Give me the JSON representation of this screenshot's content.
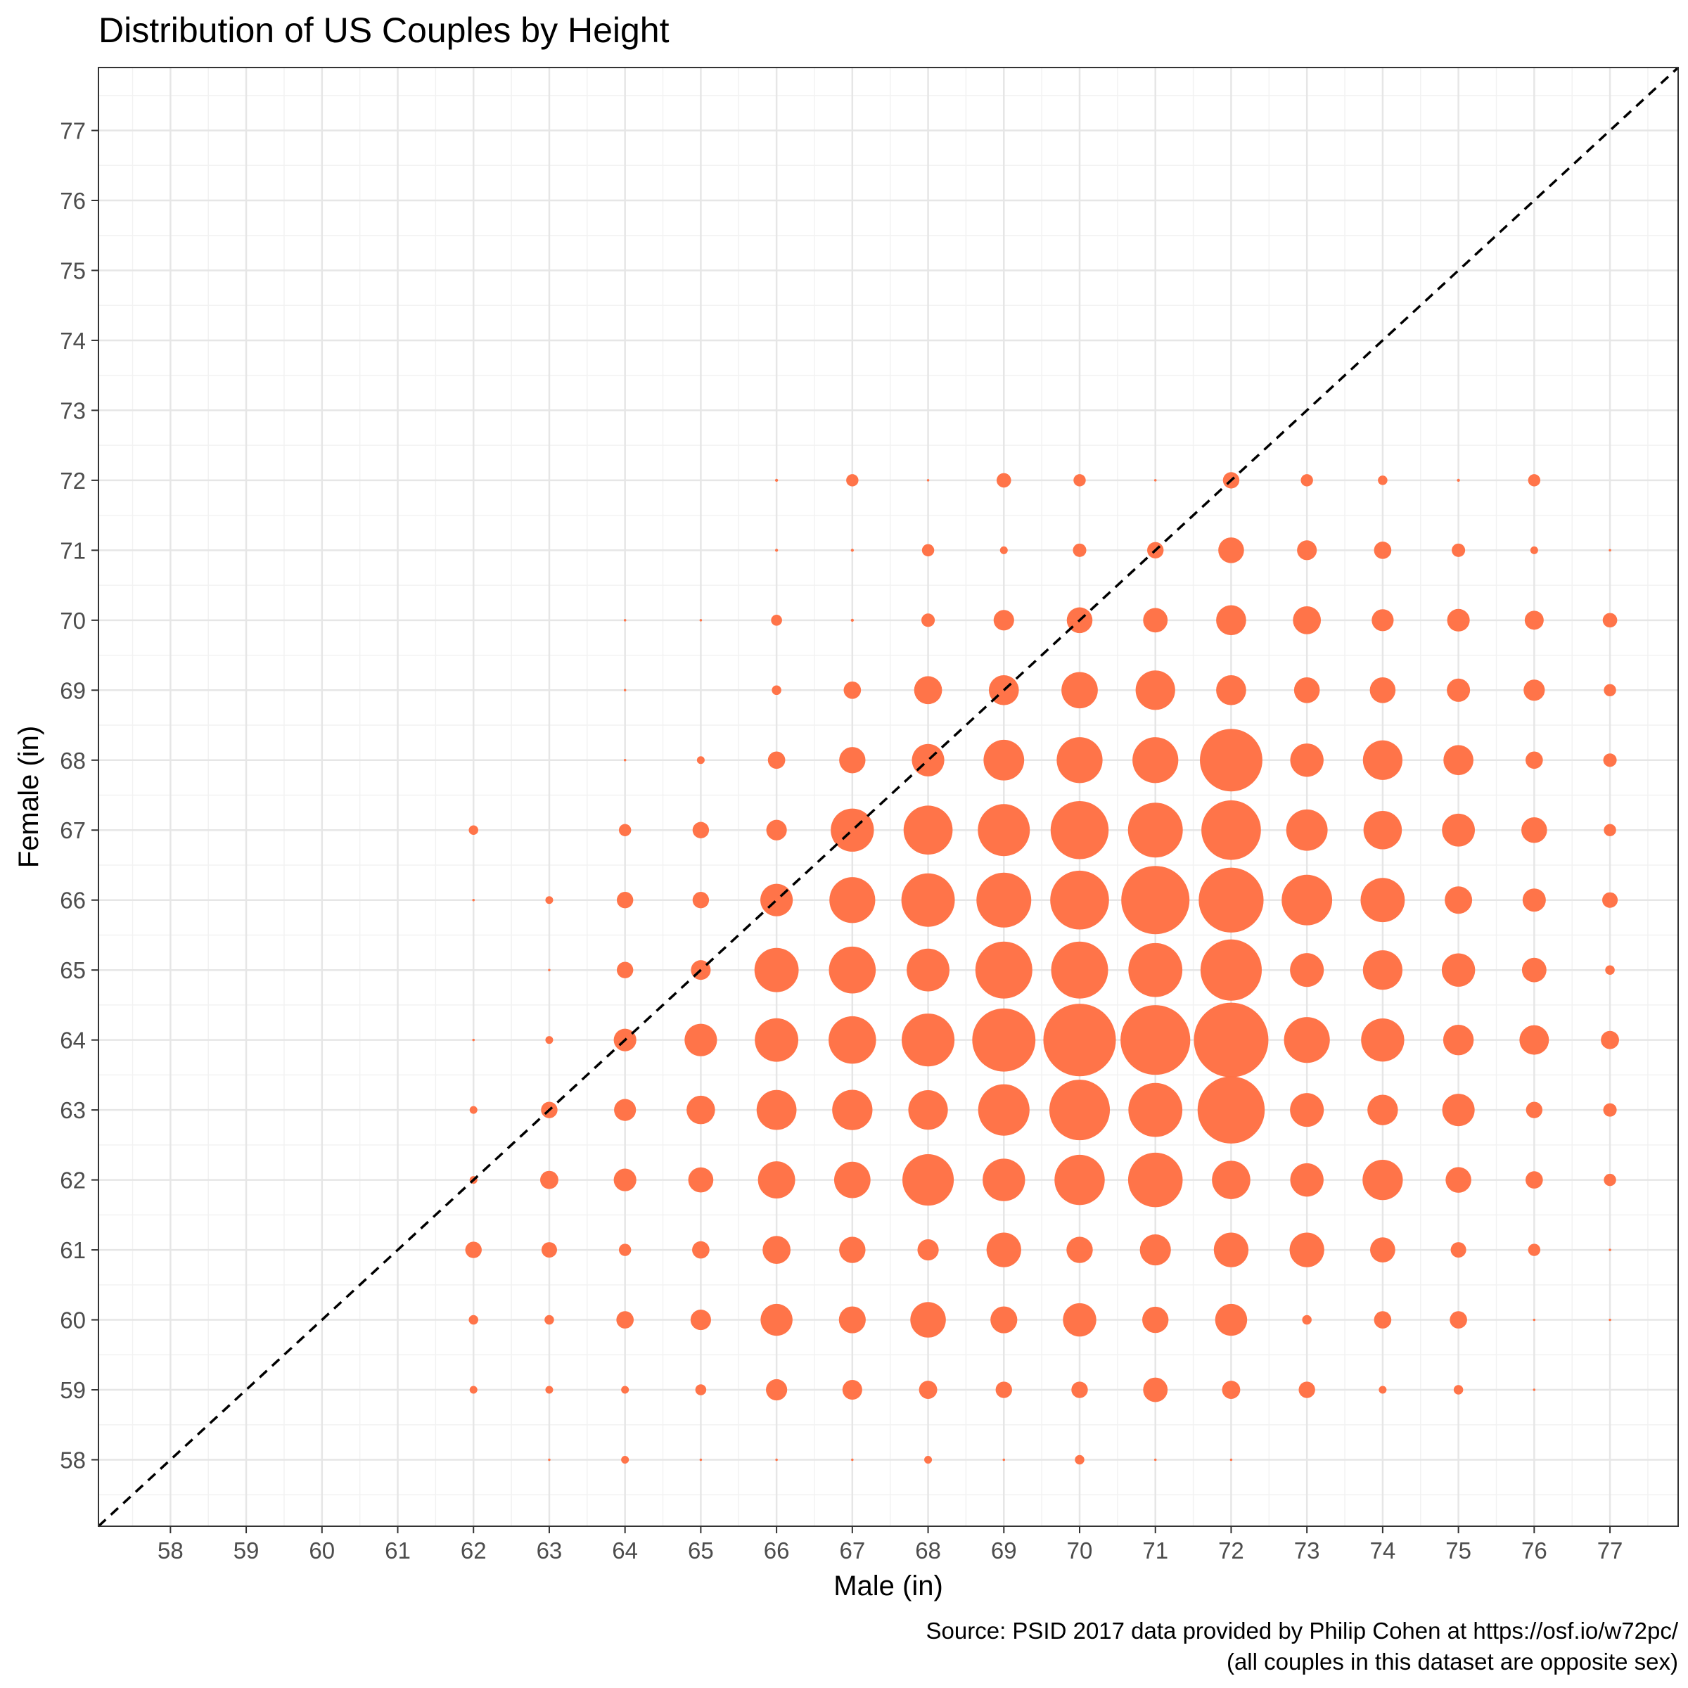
{
  "chart_data": {
    "type": "scatter",
    "title": "Distribution of US Couples by Height",
    "xlabel": "Male (in)",
    "ylabel": "Female (in)",
    "xlim": [
      57.05,
      77.9
    ],
    "ylim": [
      57.05,
      77.9
    ],
    "x_ticks": [
      58,
      59,
      60,
      61,
      62,
      63,
      64,
      65,
      66,
      67,
      68,
      69,
      70,
      71,
      72,
      73,
      74,
      75,
      76,
      77
    ],
    "y_ticks": [
      58,
      59,
      60,
      61,
      62,
      63,
      64,
      65,
      66,
      67,
      68,
      69,
      70,
      71,
      72,
      73,
      74,
      75,
      76,
      77
    ],
    "caption": [
      "Source: PSID 2017 data provided by Philip Cohen at https://osf.io/w72pc/",
      "(all couples in this dataset are opposite sex)"
    ],
    "point_color": "#ff7043",
    "reference_line": "y = x (dashed)",
    "grid": true,
    "legend": "none",
    "size_encoding": "point area proportional to count (relative size)",
    "points": [
      {
        "x": 66,
        "y": 72,
        "size": 0.3
      },
      {
        "x": 67,
        "y": 72,
        "size": 5
      },
      {
        "x": 68,
        "y": 72,
        "size": 0.2
      },
      {
        "x": 69,
        "y": 72,
        "size": 7
      },
      {
        "x": 70,
        "y": 72,
        "size": 5
      },
      {
        "x": 71,
        "y": 72,
        "size": 0.2
      },
      {
        "x": 72,
        "y": 72,
        "size": 9
      },
      {
        "x": 73,
        "y": 72,
        "size": 5
      },
      {
        "x": 74,
        "y": 72,
        "size": 3
      },
      {
        "x": 75,
        "y": 72,
        "size": 0.3
      },
      {
        "x": 76,
        "y": 72,
        "size": 5
      },
      {
        "x": 66,
        "y": 71,
        "size": 0.3
      },
      {
        "x": 67,
        "y": 71,
        "size": 0.3
      },
      {
        "x": 68,
        "y": 71,
        "size": 5
      },
      {
        "x": 69,
        "y": 71,
        "size": 2
      },
      {
        "x": 70,
        "y": 71,
        "size": 6
      },
      {
        "x": 71,
        "y": 71,
        "size": 9
      },
      {
        "x": 72,
        "y": 71,
        "size": 22
      },
      {
        "x": 73,
        "y": 71,
        "size": 13
      },
      {
        "x": 74,
        "y": 71,
        "size": 10
      },
      {
        "x": 75,
        "y": 71,
        "size": 6
      },
      {
        "x": 76,
        "y": 71,
        "size": 2
      },
      {
        "x": 77,
        "y": 71,
        "size": 0.2
      },
      {
        "x": 64,
        "y": 70,
        "size": 0.2
      },
      {
        "x": 65,
        "y": 70,
        "size": 0.2
      },
      {
        "x": 66,
        "y": 70,
        "size": 4
      },
      {
        "x": 67,
        "y": 70,
        "size": 0.3
      },
      {
        "x": 68,
        "y": 70,
        "size": 6
      },
      {
        "x": 69,
        "y": 70,
        "size": 14
      },
      {
        "x": 70,
        "y": 70,
        "size": 22
      },
      {
        "x": 71,
        "y": 70,
        "size": 20
      },
      {
        "x": 72,
        "y": 70,
        "size": 30
      },
      {
        "x": 73,
        "y": 70,
        "size": 26
      },
      {
        "x": 74,
        "y": 70,
        "size": 16
      },
      {
        "x": 75,
        "y": 70,
        "size": 17
      },
      {
        "x": 76,
        "y": 70,
        "size": 12
      },
      {
        "x": 77,
        "y": 70,
        "size": 7
      },
      {
        "x": 64,
        "y": 69,
        "size": 0.2
      },
      {
        "x": 66,
        "y": 69,
        "size": 3
      },
      {
        "x": 67,
        "y": 69,
        "size": 10
      },
      {
        "x": 68,
        "y": 69,
        "size": 26
      },
      {
        "x": 69,
        "y": 69,
        "size": 30
      },
      {
        "x": 70,
        "y": 69,
        "size": 44
      },
      {
        "x": 71,
        "y": 69,
        "size": 52
      },
      {
        "x": 72,
        "y": 69,
        "size": 30
      },
      {
        "x": 73,
        "y": 69,
        "size": 22
      },
      {
        "x": 74,
        "y": 69,
        "size": 22
      },
      {
        "x": 75,
        "y": 69,
        "size": 18
      },
      {
        "x": 76,
        "y": 69,
        "size": 15
      },
      {
        "x": 77,
        "y": 69,
        "size": 5
      },
      {
        "x": 64,
        "y": 68,
        "size": 0.2
      },
      {
        "x": 65,
        "y": 68,
        "size": 2
      },
      {
        "x": 66,
        "y": 68,
        "size": 10
      },
      {
        "x": 67,
        "y": 68,
        "size": 23
      },
      {
        "x": 68,
        "y": 68,
        "size": 35
      },
      {
        "x": 69,
        "y": 68,
        "size": 55
      },
      {
        "x": 70,
        "y": 68,
        "size": 70
      },
      {
        "x": 71,
        "y": 68,
        "size": 70
      },
      {
        "x": 72,
        "y": 68,
        "size": 130
      },
      {
        "x": 73,
        "y": 68,
        "size": 37
      },
      {
        "x": 74,
        "y": 68,
        "size": 52
      },
      {
        "x": 75,
        "y": 68,
        "size": 30
      },
      {
        "x": 76,
        "y": 68,
        "size": 10
      },
      {
        "x": 77,
        "y": 68,
        "size": 6
      },
      {
        "x": 62,
        "y": 67,
        "size": 3
      },
      {
        "x": 64,
        "y": 67,
        "size": 5
      },
      {
        "x": 65,
        "y": 67,
        "size": 9
      },
      {
        "x": 66,
        "y": 67,
        "size": 14
      },
      {
        "x": 67,
        "y": 67,
        "size": 62
      },
      {
        "x": 68,
        "y": 67,
        "size": 80
      },
      {
        "x": 69,
        "y": 67,
        "size": 90
      },
      {
        "x": 70,
        "y": 67,
        "size": 112
      },
      {
        "x": 71,
        "y": 67,
        "size": 100
      },
      {
        "x": 72,
        "y": 67,
        "size": 118
      },
      {
        "x": 73,
        "y": 67,
        "size": 57
      },
      {
        "x": 74,
        "y": 67,
        "size": 49
      },
      {
        "x": 75,
        "y": 67,
        "size": 36
      },
      {
        "x": 76,
        "y": 67,
        "size": 22
      },
      {
        "x": 77,
        "y": 67,
        "size": 5
      },
      {
        "x": 62,
        "y": 66,
        "size": 0.2
      },
      {
        "x": 63,
        "y": 66,
        "size": 2
      },
      {
        "x": 64,
        "y": 66,
        "size": 9
      },
      {
        "x": 65,
        "y": 66,
        "size": 9
      },
      {
        "x": 66,
        "y": 66,
        "size": 35
      },
      {
        "x": 67,
        "y": 66,
        "size": 70
      },
      {
        "x": 68,
        "y": 66,
        "size": 95
      },
      {
        "x": 69,
        "y": 66,
        "size": 100
      },
      {
        "x": 70,
        "y": 66,
        "size": 115
      },
      {
        "x": 71,
        "y": 66,
        "size": 155
      },
      {
        "x": 72,
        "y": 66,
        "size": 140
      },
      {
        "x": 73,
        "y": 66,
        "size": 85
      },
      {
        "x": 74,
        "y": 66,
        "size": 65
      },
      {
        "x": 75,
        "y": 66,
        "size": 25
      },
      {
        "x": 76,
        "y": 66,
        "size": 18
      },
      {
        "x": 77,
        "y": 66,
        "size": 8
      },
      {
        "x": 63,
        "y": 65,
        "size": 0.2
      },
      {
        "x": 64,
        "y": 65,
        "size": 9
      },
      {
        "x": 65,
        "y": 65,
        "size": 13
      },
      {
        "x": 66,
        "y": 65,
        "size": 65
      },
      {
        "x": 67,
        "y": 65,
        "size": 73
      },
      {
        "x": 68,
        "y": 65,
        "size": 61
      },
      {
        "x": 69,
        "y": 65,
        "size": 108
      },
      {
        "x": 70,
        "y": 65,
        "size": 108
      },
      {
        "x": 71,
        "y": 65,
        "size": 97
      },
      {
        "x": 72,
        "y": 65,
        "size": 125
      },
      {
        "x": 73,
        "y": 65,
        "size": 38
      },
      {
        "x": 74,
        "y": 65,
        "size": 52
      },
      {
        "x": 75,
        "y": 65,
        "size": 37
      },
      {
        "x": 76,
        "y": 65,
        "size": 20
      },
      {
        "x": 77,
        "y": 65,
        "size": 3
      },
      {
        "x": 62,
        "y": 64,
        "size": 0.2
      },
      {
        "x": 63,
        "y": 64,
        "size": 2
      },
      {
        "x": 64,
        "y": 64,
        "size": 17
      },
      {
        "x": 65,
        "y": 64,
        "size": 35
      },
      {
        "x": 66,
        "y": 64,
        "size": 63
      },
      {
        "x": 67,
        "y": 64,
        "size": 75
      },
      {
        "x": 68,
        "y": 64,
        "size": 93
      },
      {
        "x": 69,
        "y": 64,
        "size": 133
      },
      {
        "x": 70,
        "y": 64,
        "size": 175
      },
      {
        "x": 71,
        "y": 64,
        "size": 162
      },
      {
        "x": 72,
        "y": 64,
        "size": 185
      },
      {
        "x": 73,
        "y": 64,
        "size": 70
      },
      {
        "x": 74,
        "y": 64,
        "size": 62
      },
      {
        "x": 75,
        "y": 64,
        "size": 31
      },
      {
        "x": 76,
        "y": 64,
        "size": 29
      },
      {
        "x": 77,
        "y": 64,
        "size": 11
      },
      {
        "x": 62,
        "y": 63,
        "size": 2
      },
      {
        "x": 63,
        "y": 63,
        "size": 9
      },
      {
        "x": 64,
        "y": 63,
        "size": 16
      },
      {
        "x": 65,
        "y": 63,
        "size": 27
      },
      {
        "x": 66,
        "y": 63,
        "size": 53
      },
      {
        "x": 67,
        "y": 63,
        "size": 54
      },
      {
        "x": 68,
        "y": 63,
        "size": 52
      },
      {
        "x": 69,
        "y": 63,
        "size": 88
      },
      {
        "x": 70,
        "y": 63,
        "size": 122
      },
      {
        "x": 71,
        "y": 63,
        "size": 97
      },
      {
        "x": 72,
        "y": 63,
        "size": 150
      },
      {
        "x": 73,
        "y": 63,
        "size": 38
      },
      {
        "x": 74,
        "y": 63,
        "size": 31
      },
      {
        "x": 75,
        "y": 63,
        "size": 35
      },
      {
        "x": 76,
        "y": 63,
        "size": 9
      },
      {
        "x": 77,
        "y": 63,
        "size": 6
      },
      {
        "x": 62,
        "y": 62,
        "size": 2
      },
      {
        "x": 63,
        "y": 62,
        "size": 11
      },
      {
        "x": 64,
        "y": 62,
        "size": 17
      },
      {
        "x": 65,
        "y": 62,
        "size": 21
      },
      {
        "x": 66,
        "y": 62,
        "size": 46
      },
      {
        "x": 67,
        "y": 62,
        "size": 44
      },
      {
        "x": 68,
        "y": 62,
        "size": 88
      },
      {
        "x": 69,
        "y": 62,
        "size": 60
      },
      {
        "x": 70,
        "y": 62,
        "size": 84
      },
      {
        "x": 71,
        "y": 62,
        "size": 99
      },
      {
        "x": 72,
        "y": 62,
        "size": 49
      },
      {
        "x": 73,
        "y": 62,
        "size": 37
      },
      {
        "x": 74,
        "y": 62,
        "size": 54
      },
      {
        "x": 75,
        "y": 62,
        "size": 22
      },
      {
        "x": 76,
        "y": 62,
        "size": 10
      },
      {
        "x": 77,
        "y": 62,
        "size": 5
      },
      {
        "x": 62,
        "y": 61,
        "size": 9
      },
      {
        "x": 63,
        "y": 61,
        "size": 8
      },
      {
        "x": 64,
        "y": 61,
        "size": 5
      },
      {
        "x": 65,
        "y": 61,
        "size": 10
      },
      {
        "x": 66,
        "y": 61,
        "size": 26
      },
      {
        "x": 67,
        "y": 61,
        "size": 23
      },
      {
        "x": 68,
        "y": 61,
        "size": 15
      },
      {
        "x": 69,
        "y": 61,
        "size": 40
      },
      {
        "x": 70,
        "y": 61,
        "size": 23
      },
      {
        "x": 71,
        "y": 61,
        "size": 32
      },
      {
        "x": 72,
        "y": 61,
        "size": 40
      },
      {
        "x": 73,
        "y": 61,
        "size": 40
      },
      {
        "x": 74,
        "y": 61,
        "size": 21
      },
      {
        "x": 75,
        "y": 61,
        "size": 8
      },
      {
        "x": 76,
        "y": 61,
        "size": 5
      },
      {
        "x": 77,
        "y": 61,
        "size": 0.2
      },
      {
        "x": 62,
        "y": 60,
        "size": 3
      },
      {
        "x": 63,
        "y": 60,
        "size": 3
      },
      {
        "x": 64,
        "y": 60,
        "size": 10
      },
      {
        "x": 65,
        "y": 60,
        "size": 14
      },
      {
        "x": 66,
        "y": 60,
        "size": 34
      },
      {
        "x": 67,
        "y": 60,
        "size": 24
      },
      {
        "x": 68,
        "y": 60,
        "size": 42
      },
      {
        "x": 69,
        "y": 60,
        "size": 24
      },
      {
        "x": 70,
        "y": 60,
        "size": 37
      },
      {
        "x": 71,
        "y": 60,
        "size": 23
      },
      {
        "x": 72,
        "y": 60,
        "size": 34
      },
      {
        "x": 73,
        "y": 60,
        "size": 3
      },
      {
        "x": 74,
        "y": 60,
        "size": 10
      },
      {
        "x": 75,
        "y": 60,
        "size": 10
      },
      {
        "x": 76,
        "y": 60,
        "size": 0.2
      },
      {
        "x": 77,
        "y": 60,
        "size": 0.2
      },
      {
        "x": 62,
        "y": 59,
        "size": 2
      },
      {
        "x": 63,
        "y": 59,
        "size": 2
      },
      {
        "x": 64,
        "y": 59,
        "size": 2
      },
      {
        "x": 65,
        "y": 59,
        "size": 4
      },
      {
        "x": 66,
        "y": 59,
        "size": 15
      },
      {
        "x": 67,
        "y": 59,
        "size": 13
      },
      {
        "x": 68,
        "y": 59,
        "size": 11
      },
      {
        "x": 69,
        "y": 59,
        "size": 9
      },
      {
        "x": 70,
        "y": 59,
        "size": 9
      },
      {
        "x": 71,
        "y": 59,
        "size": 20
      },
      {
        "x": 72,
        "y": 59,
        "size": 11
      },
      {
        "x": 73,
        "y": 59,
        "size": 9
      },
      {
        "x": 74,
        "y": 59,
        "size": 2
      },
      {
        "x": 75,
        "y": 59,
        "size": 3
      },
      {
        "x": 76,
        "y": 59,
        "size": 0.2
      },
      {
        "x": 63,
        "y": 58,
        "size": 0.2
      },
      {
        "x": 64,
        "y": 58,
        "size": 2
      },
      {
        "x": 65,
        "y": 58,
        "size": 0.2
      },
      {
        "x": 66,
        "y": 58,
        "size": 0.2
      },
      {
        "x": 67,
        "y": 58,
        "size": 0.2
      },
      {
        "x": 68,
        "y": 58,
        "size": 2
      },
      {
        "x": 69,
        "y": 58,
        "size": 0.2
      },
      {
        "x": 70,
        "y": 58,
        "size": 3
      },
      {
        "x": 71,
        "y": 58,
        "size": 0.2
      },
      {
        "x": 72,
        "y": 58,
        "size": 0.2
      }
    ]
  }
}
